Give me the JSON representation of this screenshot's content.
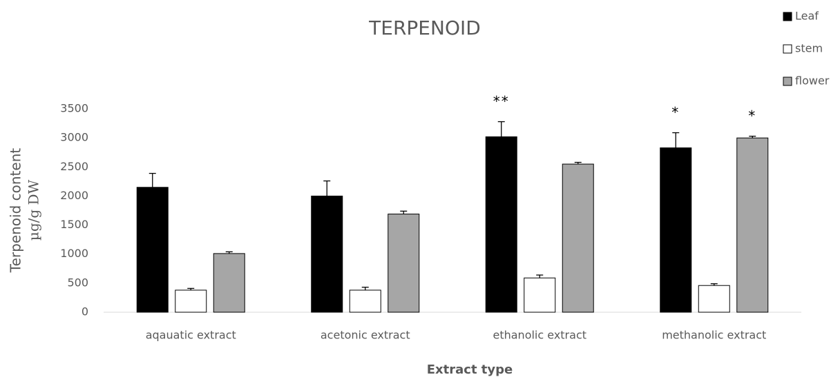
{
  "chart_data": {
    "type": "bar",
    "title": "TERPENOID",
    "x_label": "Extract type",
    "y_label": [
      "Terpenoid content",
      "µg/g DW"
    ],
    "categories": [
      "aqauatic extract",
      "acetonic extract",
      "ethanolic extract",
      "methanolic extract"
    ],
    "series": [
      {
        "name": "Leaf",
        "color": "#000000",
        "values": [
          2150,
          2000,
          3020,
          2830
        ],
        "errors": [
          240,
          260,
          260,
          260
        ]
      },
      {
        "name": "stem",
        "color": "#ffffff",
        "values": [
          380,
          380,
          590,
          460
        ],
        "errors": [
          30,
          50,
          50,
          30
        ]
      },
      {
        "name": "flower",
        "color": "#a6a6a6",
        "values": [
          1010,
          1690,
          2550,
          3000
        ],
        "errors": [
          30,
          50,
          30,
          30
        ]
      }
    ],
    "annotations": [
      {
        "text": "**",
        "category": "ethanolic extract",
        "series": "Leaf"
      },
      {
        "text": "*",
        "category": "methanolic extract",
        "series": "Leaf"
      },
      {
        "text": "*",
        "category": "methanolic extract",
        "series": "flower"
      }
    ],
    "ylim": [
      0,
      3500
    ],
    "yticks": [
      0,
      500,
      1000,
      1500,
      2000,
      2500,
      3000,
      3500
    ],
    "grid": false,
    "legend": "top-right"
  }
}
